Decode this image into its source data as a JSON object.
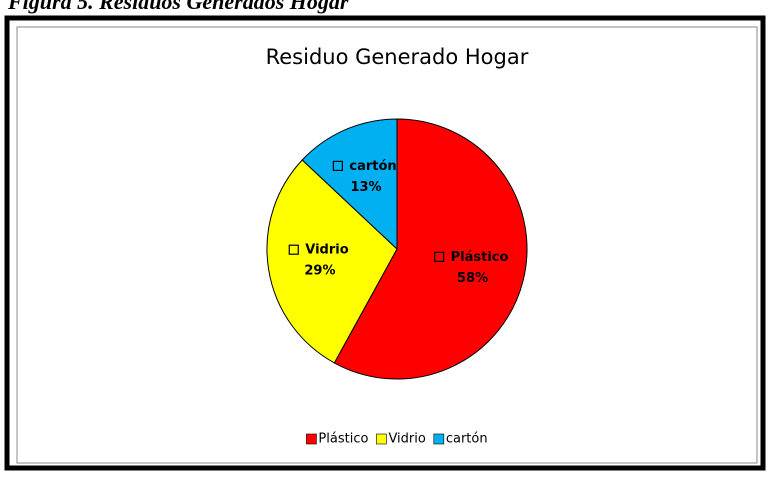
{
  "caption": "Figura 5. Residuos Generados Hogar",
  "chart_data": {
    "type": "pie",
    "title": "Residuo Generado Hogar",
    "categories": [
      "Plástico",
      "Vidrio",
      "cartón"
    ],
    "values": [
      58,
      29,
      13
    ],
    "value_labels": [
      "58%",
      "29%",
      "13%"
    ],
    "colors": [
      "#ff0000",
      "#ffff00",
      "#00b0f0"
    ],
    "legend": "bottom"
  }
}
